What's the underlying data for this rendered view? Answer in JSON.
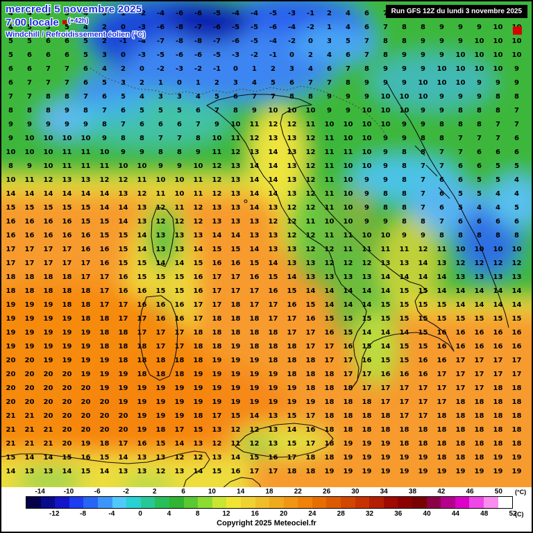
{
  "header": {
    "date": "mercredi 5 novembre 2025",
    "time": "7:00 locale",
    "run_offset": "(+42h)",
    "variable": "Windchill / Refroidissement éolien (°C)"
  },
  "run_box": {
    "text": "Run GFS 12Z du lundi 3 novembre 2025"
  },
  "footer": {
    "copyright": "Copyright 2025 Meteociel.fr"
  },
  "scale": {
    "unit_top": "(°C)",
    "unit_bottom": "(C)",
    "min": -16,
    "max": 52,
    "top_labels": [
      -14,
      -10,
      -6,
      -2,
      2,
      6,
      10,
      14,
      18,
      22,
      26,
      30,
      34,
      38,
      42,
      46,
      50
    ],
    "bottom_labels": [
      -12,
      -8,
      -4,
      0,
      4,
      8,
      12,
      16,
      20,
      24,
      28,
      32,
      36,
      40,
      44,
      48,
      52
    ],
    "colors": [
      "#04004a",
      "#0a0a8c",
      "#1414c8",
      "#1e3cf0",
      "#2864f5",
      "#3c96fa",
      "#50c8fa",
      "#28d2d2",
      "#28c896",
      "#28be5a",
      "#30b432",
      "#5ac832",
      "#8cdc32",
      "#c8e632",
      "#f0e632",
      "#f0d232",
      "#f0be28",
      "#f0aa1e",
      "#f09614",
      "#f0820a",
      "#e66e00",
      "#dc5a00",
      "#d24600",
      "#c83200",
      "#b41e00",
      "#a00a00",
      "#8c0000",
      "#780000",
      "#8c0046",
      "#b4008c",
      "#dc00c8",
      "#f046e6",
      "#fa8cf0",
      "#ffffff"
    ]
  },
  "grid": {
    "rows": [
      "4 4 5 5 4 3 1 -2 -4 -6 -6 -5 -4 -4 -5 -3 -1 2 4 6 7 7 8 8 9 9 9 9",
      "4 5 5 5 4 2 0 -3 -6 -8 -7 -6 -5 -5 -6 -4 -2 1 4 6 7 8 8 9 9 9 10 10",
      "5 5 6 6 5 2 -1 -4 -7 -8 -8 -7 -6 -5 -4 -2 0 3 5 7 8 8 9 9 9 10 10 10",
      "5 6 6 6 5 3 0 -3 -5 -6 -6 -5 -3 -2 -1 0 2 4 6 7 8 9 9 9 10 10 10 10",
      "6 6 7 7 6 4 2 0 -2 -3 -2 -1 0 1 2 3 4 6 7 8 9 9 9 10 10 10 10 9",
      "6 7 7 7 6 5 3 2 1 0 1 2 3 4 5 6 7 7 8 9 9 9 10 10 10 9 9 9",
      "7 7 8 8 7 6 5 4 3 3 4 5 6 7 7 8 8 9 9 9 10 10 10 9 9 9 8 8",
      "8 8 8 9 8 7 6 5 5 5 6 7 8 9 10 10 10 9 9 10 10 10 9 9 8 8 8 7",
      "9 9 9 9 9 8 7 6 6 6 7 9 10 11 12 12 11 10 10 10 10 9 9 8 8 8 7 7",
      "9 10 10 10 10 9 8 8 7 7 8 10 11 12 13 13 12 11 10 10 9 9 8 8 7 7 7 6",
      "10 10 10 11 11 10 9 9 8 8 9 11 12 13 14 13 12 11 11 10 9 8 8 7 7 6 6 6",
      "8 9 10 11 11 11 10 10 9 9 10 12 13 14 14 13 12 11 10 10 9 8 7 7 6 6 5 5",
      "10 11 12 13 13 12 12 11 10 10 11 12 13 14 14 13 12 11 10 9 9 8 7 6 6 5 5 4",
      "14 14 14 14 14 14 13 12 11 10 11 12 13 14 14 13 12 11 10 9 8 8 7 6 5 5 4 4",
      "15 15 15 15 15 14 14 13 12 11 12 13 13 14 13 12 12 11 10 9 8 8 7 6 5 4 4 5",
      "16 16 16 16 15 15 14 13 12 12 12 13 13 13 12 12 11 10 10 9 9 8 8 7 6 6 6 6",
      "16 16 16 16 16 15 15 14 13 13 13 14 14 13 13 12 12 11 11 10 10 9 9 8 8 8 8 8",
      "17 17 17 17 16 16 15 14 13 13 14 15 15 14 13 13 12 12 11 11 11 11 12 11 10 10 10 10",
      "17 17 17 17 17 16 15 15 14 14 15 16 16 15 14 13 13 12 12 12 13 13 14 13 12 12 12 12",
      "18 18 18 18 17 17 16 15 15 15 16 17 17 16 15 14 13 13 13 13 14 14 14 14 13 13 13 13",
      "18 18 18 18 18 17 16 16 15 15 16 17 17 17 16 15 14 14 14 14 14 15 15 14 14 14 14 14",
      "19 19 19 18 18 17 17 16 16 16 17 17 18 17 17 16 15 14 14 14 15 15 15 15 14 14 14 14",
      "19 19 19 19 18 18 17 17 16 16 17 18 18 18 17 17 16 15 15 15 15 15 15 15 15 15 15 15",
      "19 19 19 19 19 18 18 17 17 17 18 18 18 18 18 17 17 16 15 14 14 14 15 16 16 16 16 16",
      "19 19 19 19 19 18 18 18 17 17 18 18 19 18 18 18 17 17 16 15 14 15 15 16 16 16 16 16",
      "20 20 19 19 19 19 18 18 18 18 18 19 19 19 18 18 18 17 17 16 15 15 16 16 17 17 17 17",
      "20 20 20 20 19 19 19 18 18 18 19 19 19 19 19 18 18 18 17 17 16 16 16 17 17 17 17 17",
      "20 20 20 20 20 19 19 19 19 19 19 19 19 19 19 19 18 18 18 17 17 17 17 17 17 17 18 18",
      "20 20 20 20 20 20 19 19 19 19 19 19 19 19 19 19 19 18 18 18 17 17 17 17 18 18 18 18",
      "21 21 20 20 20 20 20 19 19 19 18 17 15 14 13 15 17 18 18 18 18 17 17 18 18 18 18 18",
      "21 21 21 20 20 20 20 19 18 17 15 13 12 12 13 14 16 18 18 18 18 18 18 18 18 18 18 18",
      "21 21 21 20 19 18 17 16 15 14 13 12 11 12 13 15 17 18 19 19 19 18 18 18 18 18 18 18",
      "15 14 14 15 16 15 14 13 13 12 12 13 14 15 16 17 18 18 19 19 19 19 19 18 18 18 19 19",
      "14 13 13 14 15 14 13 13 12 13 14 15 16 17 17 18 18 19 19 19 19 19 19 19 19 19 19 19"
    ]
  }
}
